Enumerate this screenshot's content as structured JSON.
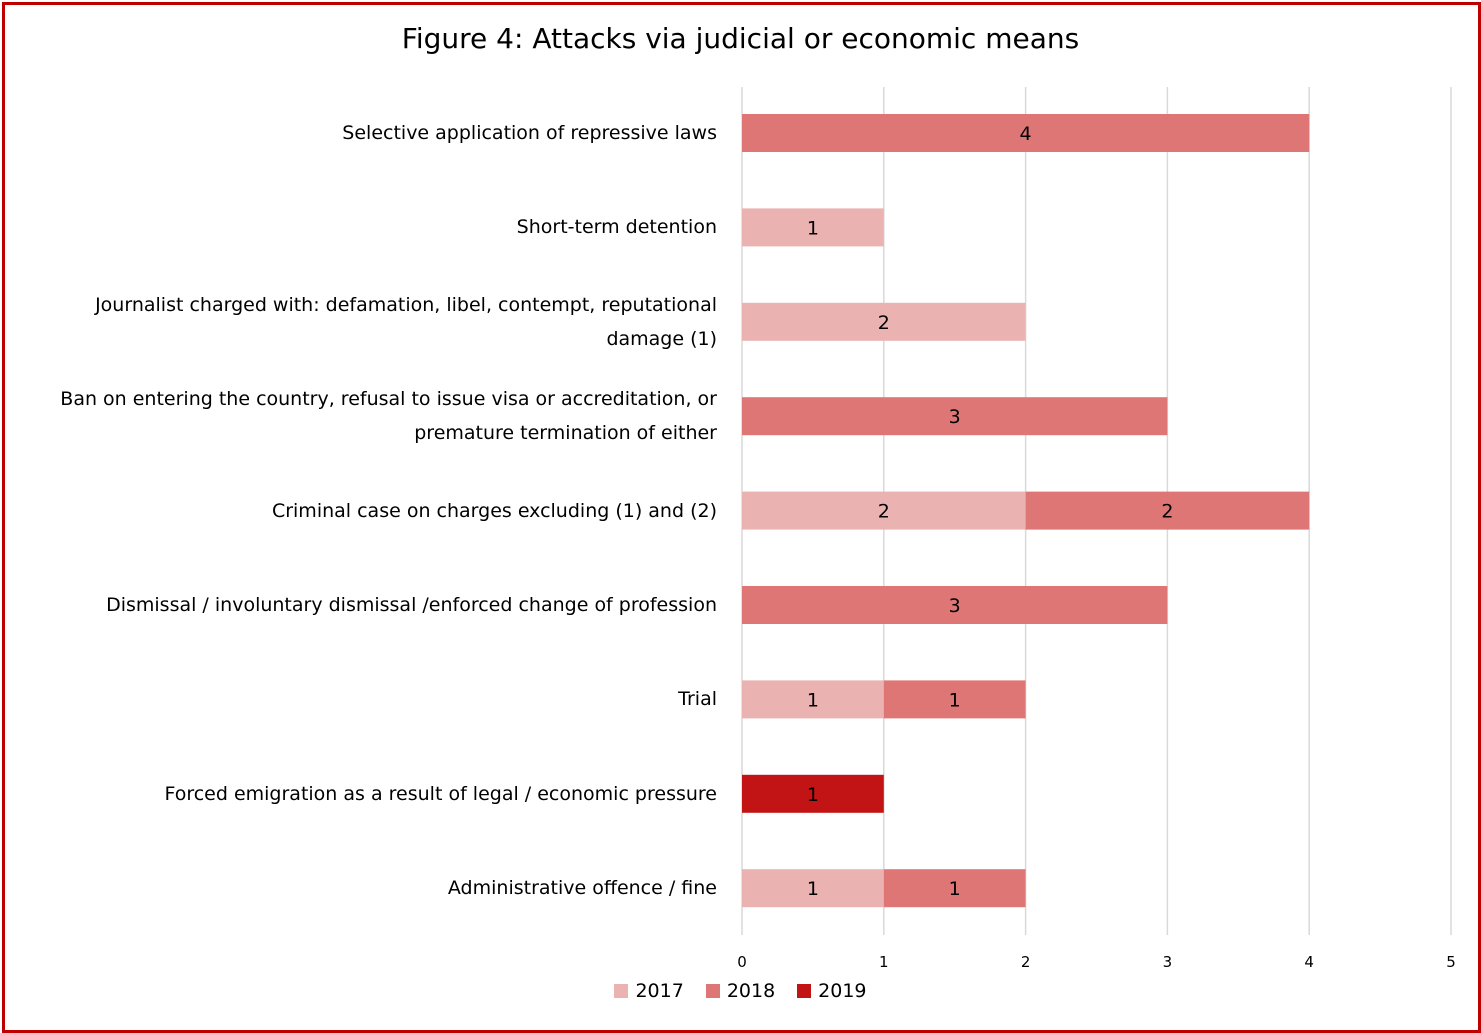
{
  "chart_data": {
    "type": "bar",
    "orientation": "horizontal",
    "stacked": true,
    "title": "Figure 4: Attacks via judicial or economic means",
    "categories": [
      "Selective application of repressive laws",
      "Short-term detention",
      "Journalist charged with: defamation, libel, contempt, reputational damage (1)",
      "Ban on entering the country, refusal to issue visa or accreditation, or premature termination of either",
      "Criminal case on charges excluding (1) and (2)",
      "Dismissal / involuntary dismissal /enforced change of profession",
      "Trial",
      "Forced emigration as a result of legal / economic pressure",
      "Administrative offence / fine"
    ],
    "series": [
      {
        "name": "2017",
        "color": "#ebb2b2",
        "values": [
          0,
          1,
          2,
          0,
          2,
          0,
          1,
          0,
          1
        ]
      },
      {
        "name": "2018",
        "color": "#df7676",
        "values": [
          4,
          0,
          0,
          3,
          2,
          3,
          1,
          0,
          1
        ]
      },
      {
        "name": "2019",
        "color": "#c21414",
        "values": [
          0,
          0,
          0,
          0,
          0,
          0,
          0,
          1,
          0
        ]
      }
    ],
    "xlim": [
      0,
      5
    ],
    "xticks": [
      "0",
      "1",
      "2",
      "3",
      "4",
      "5"
    ],
    "grid": true,
    "legend": "bottom",
    "data_labels": true
  }
}
